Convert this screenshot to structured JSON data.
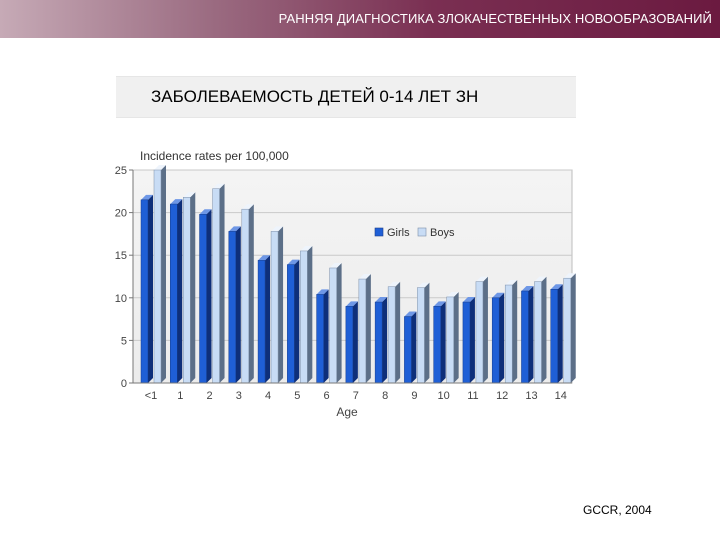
{
  "slide": {
    "title": "РАННЯЯ ДИАГНОСТИКА ЗЛОКАЧЕСТВЕННЫХ НОВООБРАЗОВАНИЙ",
    "subtitle": "ЗАБОЛЕВАЕМОСТЬ ДЕТЕЙ 0-14 ЛЕТ ЗН",
    "source": "GCCR, 2004",
    "colors": {
      "header_dark": "#6b1a40",
      "girls": "#1f5fd6",
      "boys": "#c8dcf5"
    }
  },
  "chart_data": {
    "type": "bar",
    "title": "Incidence rates per 100,000",
    "xlabel": "Age",
    "ylabel": "",
    "ylim": [
      0,
      25
    ],
    "yticks": [
      0,
      5,
      10,
      15,
      20,
      25
    ],
    "grid": true,
    "legend_position": "right",
    "categories": [
      "<1",
      "1",
      "2",
      "3",
      "4",
      "5",
      "6",
      "7",
      "8",
      "9",
      "10",
      "11",
      "12",
      "13",
      "14"
    ],
    "series": [
      {
        "name": "Girls",
        "color": "#1f5fd6",
        "values": [
          21.5,
          21,
          19.8,
          17.8,
          14.4,
          13.9,
          10.4,
          9,
          9.5,
          7.8,
          9,
          9.5,
          10,
          10.8,
          11
        ]
      },
      {
        "name": "Boys",
        "color": "#c8dcf5",
        "values": [
          25,
          21.8,
          22.8,
          20.4,
          17.8,
          15.5,
          13.5,
          12.2,
          11.3,
          11.2,
          10.1,
          11.9,
          11.5,
          11.9,
          12.3
        ]
      }
    ]
  }
}
